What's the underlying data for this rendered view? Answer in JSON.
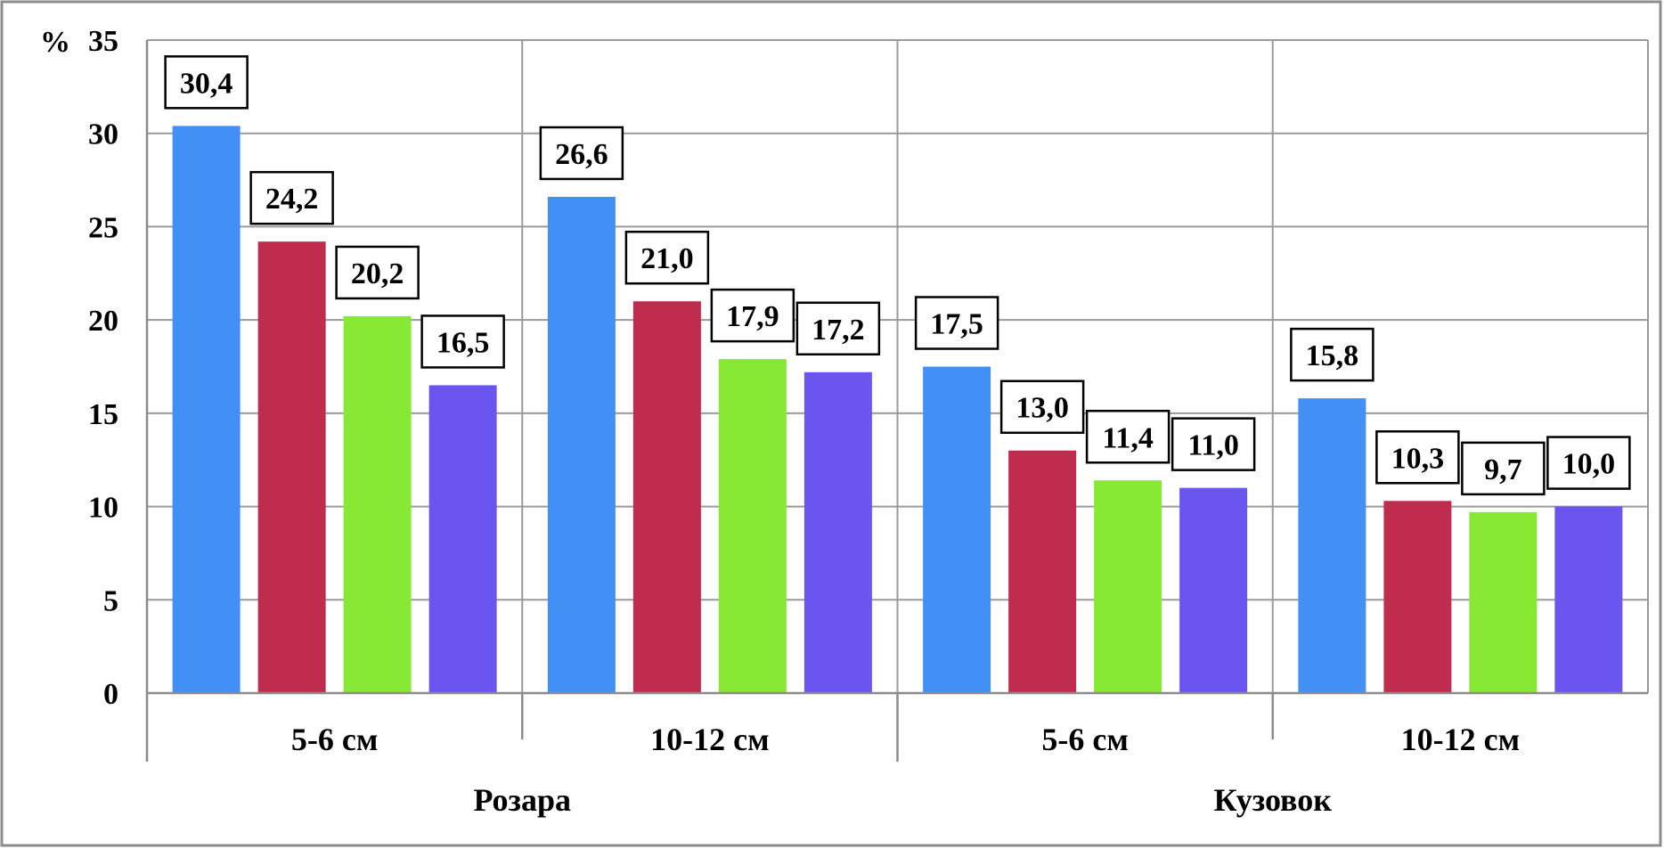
{
  "chart_data": {
    "type": "bar",
    "y_unit": "%",
    "ylim": [
      0,
      35
    ],
    "y_ticks": [
      "0",
      "5",
      "10",
      "15",
      "20",
      "25",
      "30",
      "35"
    ],
    "grid": true,
    "legend": "none",
    "groups": [
      {
        "label": "Розара",
        "subgroups": [
          {
            "label": "5-6 см",
            "values": [
              30.4,
              24.2,
              20.2,
              16.5
            ],
            "value_labels": [
              "30,4",
              "24,2",
              "20,2",
              "16,5"
            ]
          },
          {
            "label": "10-12 см",
            "values": [
              26.6,
              21.0,
              17.9,
              17.2
            ],
            "value_labels": [
              "26,6",
              "21,0",
              "17,9",
              "17,2"
            ]
          }
        ]
      },
      {
        "label": "Кузовок",
        "subgroups": [
          {
            "label": "5-6 см",
            "values": [
              17.5,
              13.0,
              11.4,
              11.0
            ],
            "value_labels": [
              "17,5",
              "13,0",
              "11,4",
              "11,0"
            ]
          },
          {
            "label": "10-12 см",
            "values": [
              15.8,
              10.3,
              9.7,
              10.0
            ],
            "value_labels": [
              "15,8",
              "10,3",
              "9,7",
              "10,0"
            ]
          }
        ]
      }
    ],
    "series_colors": [
      "#4290f5",
      "#c02c4e",
      "#87e933",
      "#6a55f0"
    ]
  }
}
